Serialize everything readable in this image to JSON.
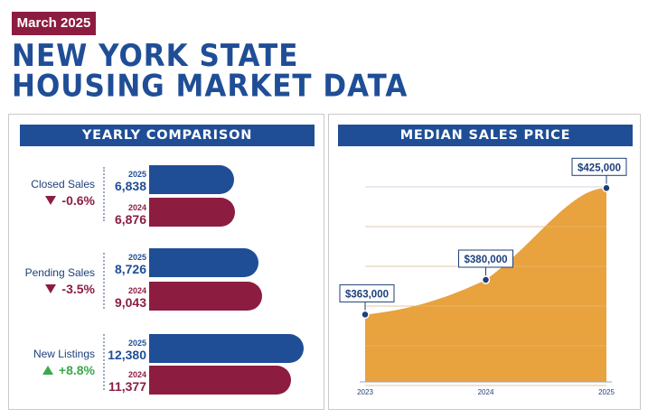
{
  "header": {
    "date_tag": "March 2025",
    "title_line1": "NEW YORK STATE",
    "title_line2": "HOUSING MARKET DATA"
  },
  "yearly": {
    "heading": "YEARLY COMPARISON",
    "metrics": [
      {
        "label": "Closed Sales",
        "change": "-0.6%",
        "direction": "down",
        "y2025": "2025",
        "v2025": "6,838",
        "y2024": "2024",
        "v2024": "6,876"
      },
      {
        "label": "Pending Sales",
        "change": "-3.5%",
        "direction": "down",
        "y2025": "2025",
        "v2025": "8,726",
        "y2024": "2024",
        "v2024": "9,043"
      },
      {
        "label": "New Listings",
        "change": "+8.8%",
        "direction": "up",
        "y2025": "2025",
        "v2025": "12,380",
        "y2024": "2024",
        "v2024": "11,377"
      }
    ]
  },
  "median": {
    "heading": "MEDIAN SALES PRICE"
  },
  "colors": {
    "navy": "#1f4e96",
    "maroon": "#8c1d40",
    "orange": "#e8a23e",
    "green": "#3aa84c"
  },
  "chart_data": [
    {
      "type": "bar",
      "orientation": "horizontal",
      "title": "YEARLY COMPARISON",
      "categories": [
        "Closed Sales",
        "Pending Sales",
        "New Listings"
      ],
      "series": [
        {
          "name": "2025",
          "values": [
            6838,
            8726,
            12380
          ]
        },
        {
          "name": "2024",
          "values": [
            6876,
            9043,
            11377
          ]
        }
      ],
      "changes": [
        "-0.6%",
        "-3.5%",
        "+8.8%"
      ]
    },
    {
      "type": "area",
      "title": "MEDIAN SALES PRICE",
      "x": [
        "2023",
        "2024",
        "2025"
      ],
      "values": [
        363000,
        380000,
        425000
      ],
      "point_labels": [
        "$363,000",
        "$380,000",
        "$425,000"
      ],
      "grid": true
    }
  ]
}
